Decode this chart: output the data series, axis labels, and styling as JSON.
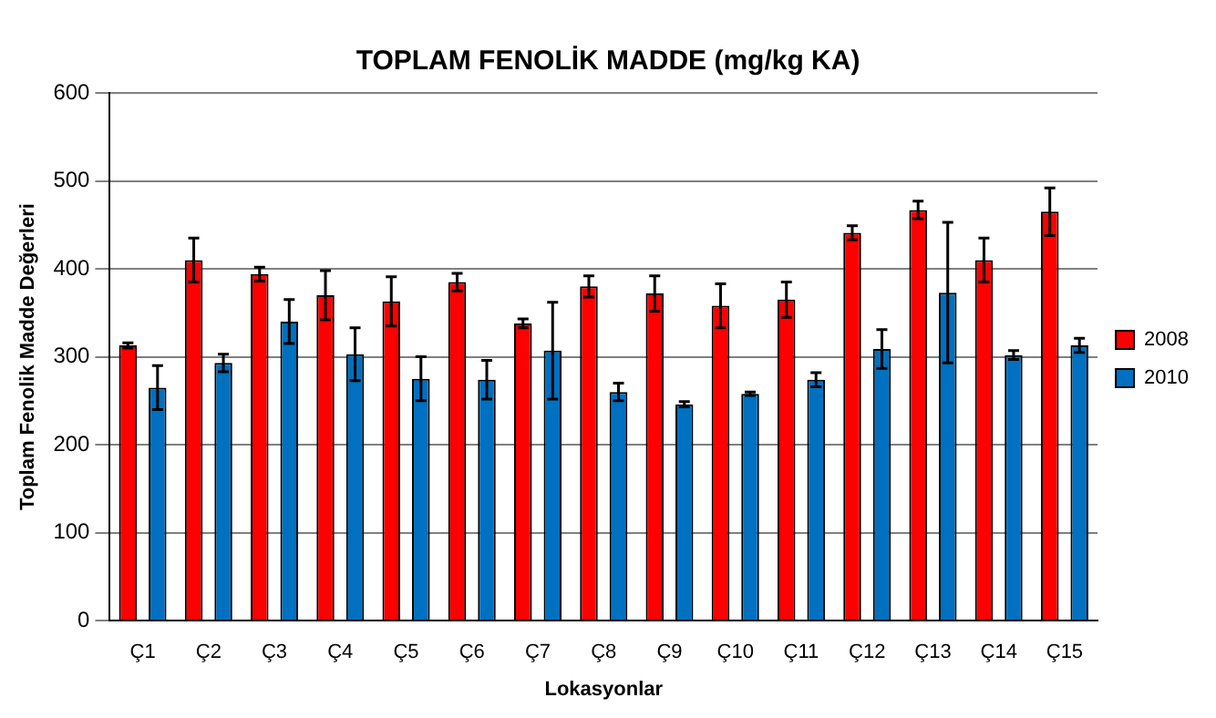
{
  "chart_data": {
    "type": "bar",
    "title": "TOPLAM FENOLİK MADDE (mg/kg KA)",
    "xlabel": "Lokasyonlar",
    "ylabel": "Toplam Fenolik Madde Değerleri",
    "categories": [
      "Ç1",
      "Ç2",
      "Ç3",
      "Ç4",
      "Ç5",
      "Ç6",
      "Ç7",
      "Ç8",
      "Ç9",
      "Ç10",
      "Ç11",
      "Ç12",
      "Ç13",
      "Ç14",
      "Ç15"
    ],
    "series": [
      {
        "name": "2008",
        "color": "#ff0000",
        "values": [
          313,
          410,
          394,
          370,
          363,
          385,
          338,
          380,
          372,
          358,
          365,
          441,
          467,
          410,
          465
        ],
        "errors": [
          3,
          25,
          8,
          28,
          28,
          10,
          5,
          12,
          20,
          25,
          20,
          8,
          10,
          25,
          27
        ]
      },
      {
        "name": "2010",
        "color": "#0070c0",
        "values": [
          265,
          293,
          340,
          303,
          275,
          274,
          307,
          260,
          246,
          258,
          274,
          309,
          373,
          302,
          313
        ],
        "errors": [
          25,
          10,
          25,
          30,
          25,
          22,
          55,
          10,
          3,
          2,
          8,
          22,
          80,
          5,
          8
        ]
      }
    ],
    "ylim": [
      0,
      600
    ],
    "yticks": [
      0,
      100,
      200,
      300,
      400,
      500,
      600
    ],
    "grid": "y",
    "legend": "right"
  }
}
